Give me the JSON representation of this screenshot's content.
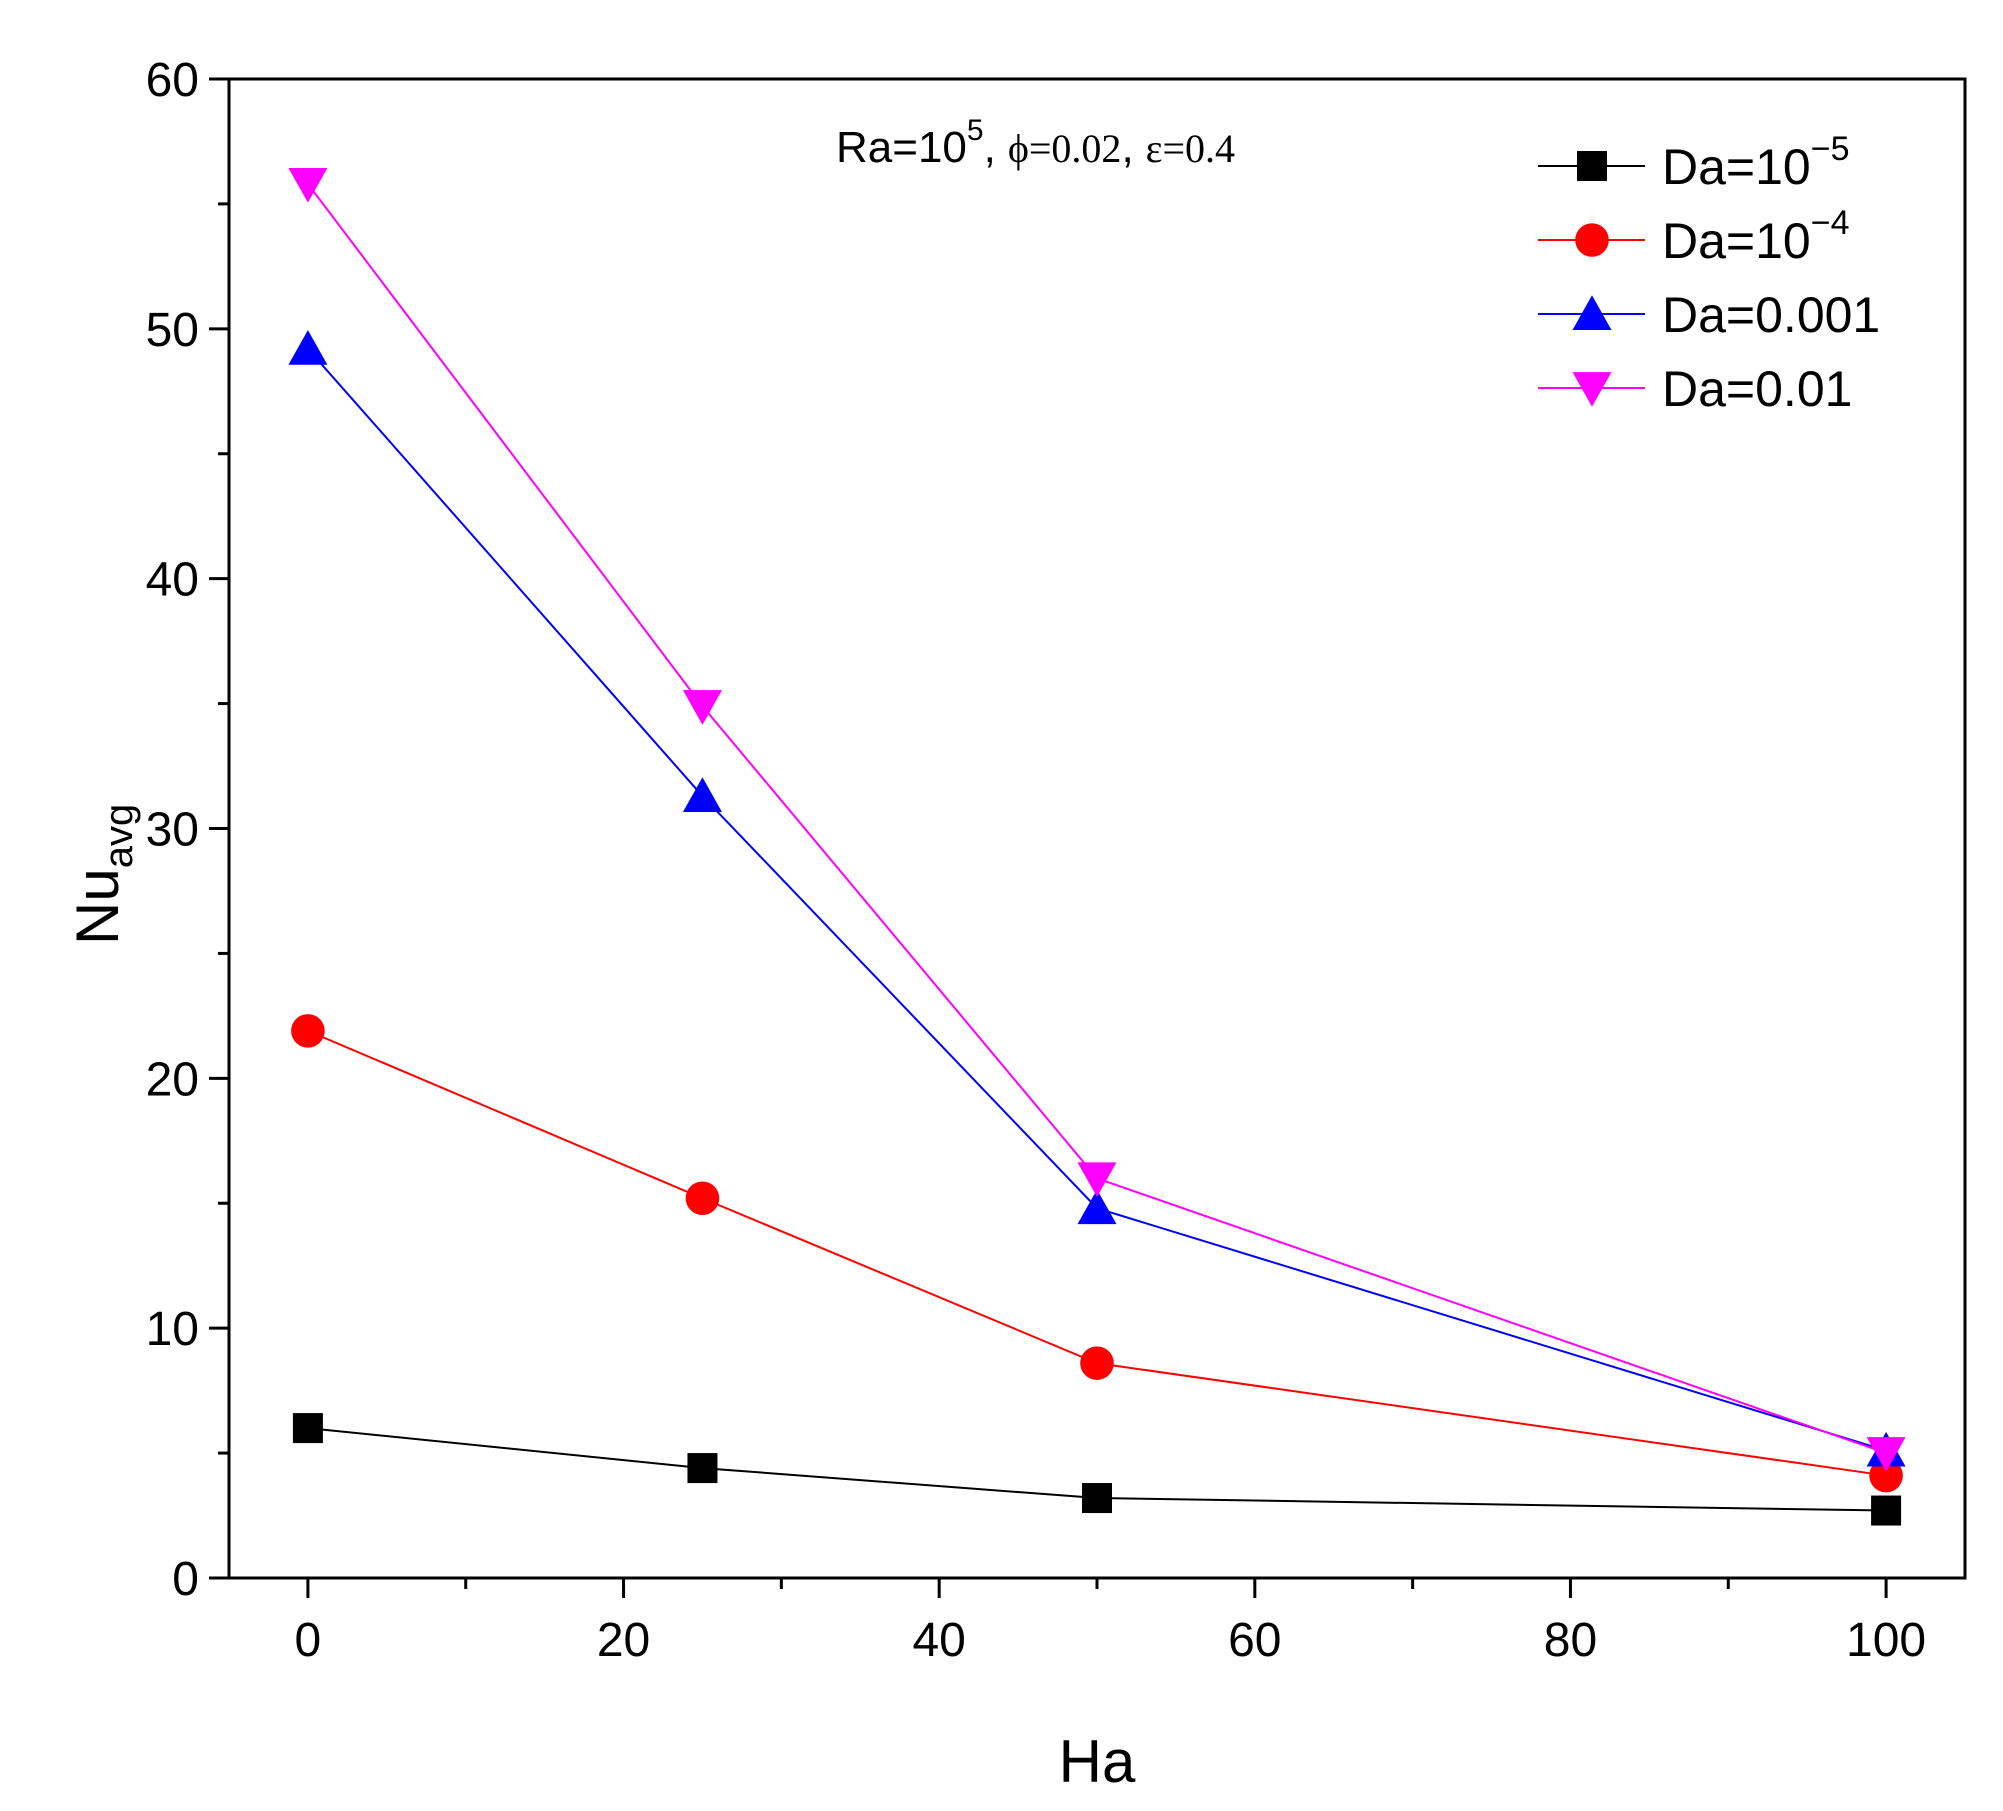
{
  "chart_data": {
    "type": "line",
    "title": "",
    "annotation": {
      "ra_base": "Ra=10",
      "ra_exp": "5",
      "separator": ",",
      "phi": "ϕ=0.02",
      "eps": "ε=0.4"
    },
    "xlabel": "Ha",
    "ylabel": {
      "main": "Nu",
      "sub": "avg"
    },
    "x": [
      0,
      25,
      50,
      100
    ],
    "xlim": [
      -5,
      105
    ],
    "ylim": [
      0,
      60
    ],
    "xticks": [
      0,
      20,
      40,
      60,
      80,
      100
    ],
    "xtick_labels": [
      "0",
      "20",
      "40",
      "60",
      "80",
      "100"
    ],
    "yticks": [
      0,
      10,
      20,
      30,
      40,
      50,
      60
    ],
    "ytick_labels": [
      "0",
      "10",
      "20",
      "30",
      "40",
      "50",
      "60"
    ],
    "grid": false,
    "legend_position": "top-right",
    "series": [
      {
        "name": "Da=10−5",
        "label_base": "Da=10",
        "label_exp": "−5",
        "marker": "square",
        "color": "#000000",
        "values": [
          6.0,
          4.4,
          3.2,
          2.7
        ]
      },
      {
        "name": "Da=10−4",
        "label_base": "Da=10",
        "label_exp": "−4",
        "marker": "circle",
        "color": "#ff0000",
        "values": [
          21.9,
          15.2,
          8.6,
          4.1
        ]
      },
      {
        "name": "Da=0.001",
        "label_base": "Da=0.001",
        "label_exp": "",
        "marker": "triangle-up",
        "color": "#0000ff",
        "values": [
          49.2,
          31.3,
          14.8,
          5.1
        ]
      },
      {
        "name": "Da=0.01",
        "label_base": "Da=0.01",
        "label_exp": "",
        "marker": "triangle-down",
        "color": "#ff00ff",
        "values": [
          55.8,
          34.9,
          16.0,
          5.0
        ]
      }
    ]
  }
}
